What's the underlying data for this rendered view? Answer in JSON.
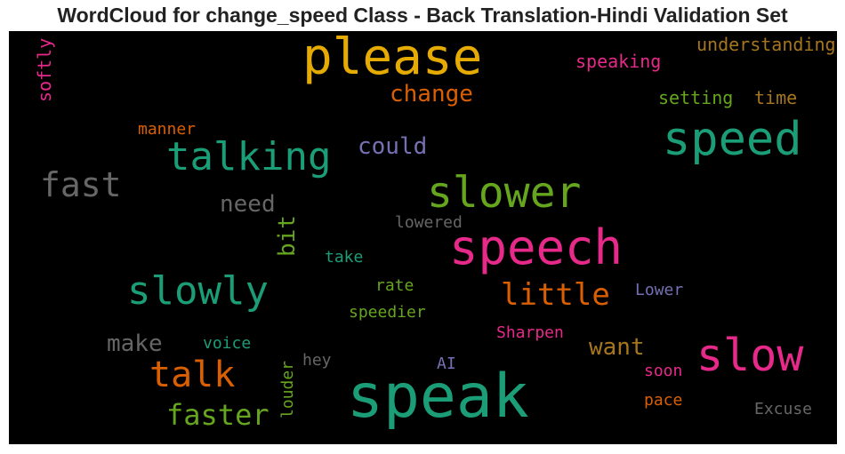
{
  "chart_data": {
    "type": "wordcloud",
    "title": "WordCloud for change_speed Class - Back Translation-Hindi Validation Set",
    "background": "#000000",
    "words": [
      {
        "text": "speak",
        "weight": 1.0,
        "color": "#1b9e77",
        "orientation": "horizontal"
      },
      {
        "text": "please",
        "weight": 0.85,
        "color": "#e6ab02",
        "orientation": "horizontal"
      },
      {
        "text": "speech",
        "weight": 0.8,
        "color": "#e7298a",
        "orientation": "horizontal"
      },
      {
        "text": "speed",
        "weight": 0.78,
        "color": "#1b9e77",
        "orientation": "horizontal"
      },
      {
        "text": "slower",
        "weight": 0.72,
        "color": "#66a61e",
        "orientation": "horizontal"
      },
      {
        "text": "slow",
        "weight": 0.72,
        "color": "#e7298a",
        "orientation": "horizontal"
      },
      {
        "text": "talking",
        "weight": 0.6,
        "color": "#1b9e77",
        "orientation": "horizontal"
      },
      {
        "text": "slowly",
        "weight": 0.6,
        "color": "#1b9e77",
        "orientation": "horizontal"
      },
      {
        "text": "talk",
        "weight": 0.55,
        "color": "#d95f02",
        "orientation": "horizontal"
      },
      {
        "text": "fast",
        "weight": 0.55,
        "color": "#666666",
        "orientation": "horizontal"
      },
      {
        "text": "faster",
        "weight": 0.5,
        "color": "#66a61e",
        "orientation": "horizontal"
      },
      {
        "text": "little",
        "weight": 0.48,
        "color": "#d95f02",
        "orientation": "horizontal"
      },
      {
        "text": "change",
        "weight": 0.4,
        "color": "#d95f02",
        "orientation": "horizontal"
      },
      {
        "text": "could",
        "weight": 0.38,
        "color": "#7570b3",
        "orientation": "horizontal"
      },
      {
        "text": "want",
        "weight": 0.38,
        "color": "#a6761d",
        "orientation": "horizontal"
      },
      {
        "text": "make",
        "weight": 0.36,
        "color": "#666666",
        "orientation": "horizontal"
      },
      {
        "text": "need",
        "weight": 0.36,
        "color": "#666666",
        "orientation": "horizontal"
      },
      {
        "text": "bit",
        "weight": 0.36,
        "color": "#66a61e",
        "orientation": "vertical"
      },
      {
        "text": "understanding",
        "weight": 0.28,
        "color": "#a6761d",
        "orientation": "horizontal"
      },
      {
        "text": "speaking",
        "weight": 0.28,
        "color": "#e7298a",
        "orientation": "horizontal"
      },
      {
        "text": "softly",
        "weight": 0.28,
        "color": "#e7298a",
        "orientation": "vertical"
      },
      {
        "text": "setting",
        "weight": 0.28,
        "color": "#66a61e",
        "orientation": "horizontal"
      },
      {
        "text": "time",
        "weight": 0.28,
        "color": "#a6761d",
        "orientation": "horizontal"
      },
      {
        "text": "manner",
        "weight": 0.26,
        "color": "#d95f02",
        "orientation": "horizontal"
      },
      {
        "text": "lowered",
        "weight": 0.26,
        "color": "#666666",
        "orientation": "horizontal"
      },
      {
        "text": "take",
        "weight": 0.26,
        "color": "#1b9e77",
        "orientation": "horizontal"
      },
      {
        "text": "rate",
        "weight": 0.26,
        "color": "#66a61e",
        "orientation": "horizontal"
      },
      {
        "text": "Lower",
        "weight": 0.26,
        "color": "#7570b3",
        "orientation": "horizontal"
      },
      {
        "text": "speedier",
        "weight": 0.26,
        "color": "#66a61e",
        "orientation": "horizontal"
      },
      {
        "text": "Sharpen",
        "weight": 0.26,
        "color": "#e7298a",
        "orientation": "horizontal"
      },
      {
        "text": "voice",
        "weight": 0.26,
        "color": "#1b9e77",
        "orientation": "horizontal"
      },
      {
        "text": "hey",
        "weight": 0.26,
        "color": "#666666",
        "orientation": "horizontal"
      },
      {
        "text": "louder",
        "weight": 0.26,
        "color": "#66a61e",
        "orientation": "vertical"
      },
      {
        "text": "AI",
        "weight": 0.26,
        "color": "#7570b3",
        "orientation": "horizontal"
      },
      {
        "text": "soon",
        "weight": 0.26,
        "color": "#e7298a",
        "orientation": "horizontal"
      },
      {
        "text": "pace",
        "weight": 0.26,
        "color": "#d95f02",
        "orientation": "horizontal"
      },
      {
        "text": "Excuse",
        "weight": 0.26,
        "color": "#666666",
        "orientation": "horizontal"
      }
    ]
  }
}
